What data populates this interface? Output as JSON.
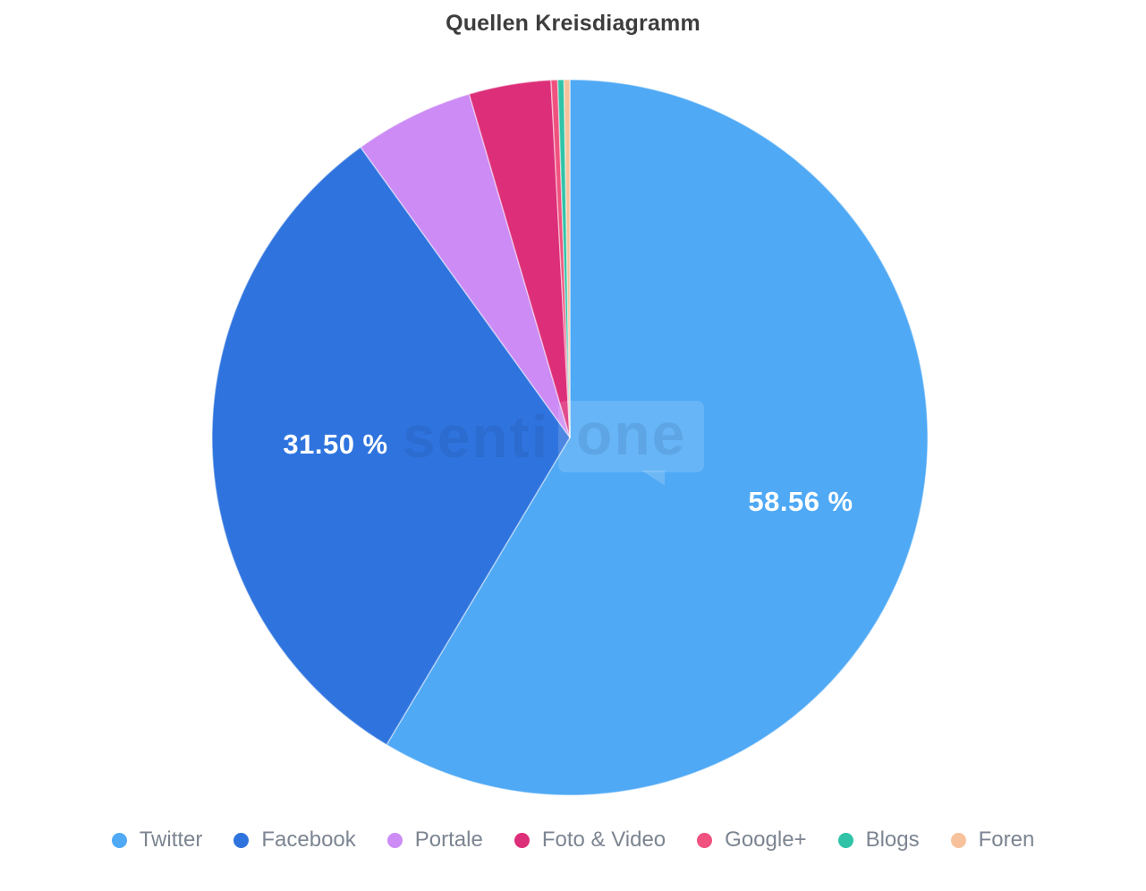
{
  "title": "Quellen Kreisdiagramm",
  "watermark": {
    "text_left": "senti",
    "text_right": "one"
  },
  "chart_data": {
    "type": "pie",
    "title": "Quellen Kreisdiagramm",
    "categories": [
      "Twitter",
      "Facebook",
      "Portale",
      "Foto & Video",
      "Google+",
      "Blogs",
      "Foren"
    ],
    "values": [
      58.56,
      31.5,
      5.4,
      3.7,
      0.3,
      0.28,
      0.26
    ],
    "colors": [
      "#4FA9F5",
      "#2F74DE",
      "#CC8BF5",
      "#DD2E79",
      "#F0517E",
      "#2FC3A7",
      "#F7C29B"
    ],
    "start_angle_deg": 0,
    "direction": "clockwise",
    "legend_position": "bottom",
    "slice_labels": [
      {
        "category": "Twitter",
        "text": "58.56 %"
      },
      {
        "category": "Facebook",
        "text": "31.50 %"
      }
    ],
    "label_color": "#FFFFFF",
    "title_color": "#3D3D3D",
    "legend_text_color": "#7C8591"
  }
}
